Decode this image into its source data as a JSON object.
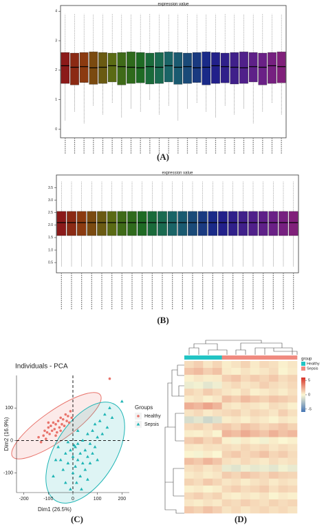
{
  "chart_data": [
    {
      "type": "box",
      "title": "expression value",
      "panel_label": "(A)",
      "categories": [
        null,
        null,
        null,
        null,
        null,
        null,
        null,
        null,
        null,
        null,
        null,
        null,
        null,
        null,
        null,
        null,
        null,
        null,
        null,
        null,
        null,
        null,
        null,
        null
      ],
      "min": [
        0.3,
        0.6,
        0.2,
        0.8,
        0.5,
        0.9,
        0.4,
        0.7,
        0.6,
        1.0,
        0.5,
        0.8,
        0.3,
        0.7,
        0.9,
        0.6,
        0.4,
        0.8,
        0.5,
        0.7,
        0.2,
        0.6,
        0.9,
        0.5
      ],
      "q1": [
        1.55,
        1.5,
        1.58,
        1.52,
        1.55,
        1.6,
        1.5,
        1.55,
        1.57,
        1.53,
        1.55,
        1.6,
        1.52,
        1.55,
        1.58,
        1.5,
        1.55,
        1.57,
        1.53,
        1.55,
        1.6,
        1.5,
        1.55,
        1.57
      ],
      "median": [
        2.15,
        2.1,
        2.12,
        2.08,
        2.1,
        2.15,
        2.12,
        2.1,
        2.08,
        2.12,
        2.1,
        2.15,
        2.1,
        2.12,
        2.08,
        2.1,
        2.15,
        2.12,
        2.1,
        2.08,
        2.12,
        2.1,
        2.15,
        2.12
      ],
      "q3": [
        2.6,
        2.58,
        2.6,
        2.62,
        2.6,
        2.58,
        2.6,
        2.62,
        2.6,
        2.58,
        2.6,
        2.62,
        2.6,
        2.58,
        2.6,
        2.62,
        2.6,
        2.58,
        2.6,
        2.62,
        2.6,
        2.58,
        2.6,
        2.62
      ],
      "max": [
        3.9,
        3.9,
        3.9,
        3.9,
        3.9,
        3.9,
        3.9,
        3.9,
        3.9,
        3.9,
        3.9,
        3.9,
        3.9,
        3.9,
        3.9,
        3.9,
        3.9,
        3.9,
        3.9,
        3.9,
        3.9,
        3.9,
        3.9,
        3.9
      ],
      "colors": [
        "#8b1a1a",
        "#8b2a14",
        "#8b3a10",
        "#7a4a10",
        "#6a5a12",
        "#5a6a14",
        "#3f6a18",
        "#2f6a1c",
        "#1f6a24",
        "#1a6a3a",
        "#1a6a50",
        "#1a6466",
        "#1a5a70",
        "#1a4a78",
        "#1a3a80",
        "#1a2a88",
        "#22208a",
        "#30208a",
        "#40208a",
        "#50208a",
        "#5e2088",
        "#6a2086",
        "#762080",
        "#80207a"
      ],
      "ylim": [
        -0.2,
        4.1
      ],
      "yticks": [
        0,
        1,
        2,
        3,
        4
      ]
    },
    {
      "type": "box",
      "title": "expression value",
      "panel_label": "(B)",
      "categories": [
        null,
        null,
        null,
        null,
        null,
        null,
        null,
        null,
        null,
        null,
        null,
        null,
        null,
        null,
        null,
        null,
        null,
        null,
        null,
        null,
        null,
        null,
        null,
        null
      ],
      "min": [
        0.35,
        0.35,
        0.35,
        0.35,
        0.35,
        0.35,
        0.35,
        0.35,
        0.35,
        0.35,
        0.35,
        0.35,
        0.35,
        0.35,
        0.35,
        0.35,
        0.35,
        0.35,
        0.35,
        0.35,
        0.35,
        0.35,
        0.35,
        0.35
      ],
      "q1": [
        1.58,
        1.58,
        1.58,
        1.58,
        1.58,
        1.58,
        1.58,
        1.58,
        1.58,
        1.58,
        1.58,
        1.58,
        1.58,
        1.58,
        1.58,
        1.58,
        1.58,
        1.58,
        1.58,
        1.58,
        1.58,
        1.58,
        1.58,
        1.58
      ],
      "median": [
        2.1,
        2.1,
        2.1,
        2.1,
        2.1,
        2.1,
        2.1,
        2.1,
        2.1,
        2.1,
        2.1,
        2.1,
        2.1,
        2.1,
        2.1,
        2.1,
        2.1,
        2.1,
        2.1,
        2.1,
        2.1,
        2.1,
        2.1,
        2.1
      ],
      "q3": [
        2.55,
        2.55,
        2.55,
        2.55,
        2.55,
        2.55,
        2.55,
        2.55,
        2.55,
        2.55,
        2.55,
        2.55,
        2.55,
        2.55,
        2.55,
        2.55,
        2.55,
        2.55,
        2.55,
        2.55,
        2.55,
        2.55,
        2.55,
        2.55
      ],
      "max": [
        3.75,
        3.75,
        3.75,
        3.75,
        3.75,
        3.75,
        3.75,
        3.75,
        3.75,
        3.75,
        3.75,
        3.75,
        3.75,
        3.75,
        3.75,
        3.75,
        3.75,
        3.75,
        3.75,
        3.75,
        3.75,
        3.75,
        3.75,
        3.75
      ],
      "colors": [
        "#8b1a1a",
        "#8b2a14",
        "#8b3a10",
        "#7a4a10",
        "#6a5a12",
        "#5a6a14",
        "#3f6a18",
        "#2f6a1c",
        "#1f6a24",
        "#1a6a3a",
        "#1a6a50",
        "#1a6466",
        "#1a5a70",
        "#1a4a78",
        "#1a3a80",
        "#1a2a88",
        "#22208a",
        "#30208a",
        "#40208a",
        "#50208a",
        "#5e2088",
        "#6a2086",
        "#762080",
        "#80207a"
      ],
      "ylim": [
        0.2,
        3.9
      ],
      "yticks": [
        0.5,
        {
          "value": 1,
          "label": "1.0"
        },
        1.5,
        {
          "value": 2,
          "label": "2.0"
        },
        2.5,
        {
          "value": 3,
          "label": "3.0"
        },
        3.5
      ]
    },
    {
      "type": "scatter",
      "title": "Individuals - PCA",
      "panel_label": "(C)",
      "xlabel": "Dim1 (26.5%)",
      "ylabel": "Dim2 (16.9%)",
      "legend_title": "Groups",
      "series": [
        {
          "name": "Healthy",
          "color": "#e8736b",
          "marker": "circle",
          "x": [
            -140,
            -130,
            -120,
            -115,
            -110,
            -105,
            -100,
            -95,
            -90,
            -85,
            -80,
            -75,
            -70,
            -65,
            -60,
            -55,
            -50,
            -45,
            -40,
            -35,
            -30,
            -25,
            -20,
            -15,
            -10,
            -5,
            -100,
            -70,
            -50,
            150
          ],
          "y": [
            10,
            -5,
            15,
            30,
            5,
            25,
            40,
            20,
            45,
            30,
            55,
            35,
            50,
            25,
            60,
            40,
            70,
            50,
            65,
            45,
            80,
            60,
            75,
            55,
            90,
            70,
            55,
            15,
            30,
            190
          ]
        },
        {
          "name": "Sepsis",
          "color": "#1fb5b5",
          "marker": "triangle",
          "x": [
            -60,
            -50,
            -40,
            -30,
            -20,
            -10,
            0,
            0,
            10,
            10,
            20,
            20,
            30,
            30,
            40,
            40,
            50,
            50,
            60,
            60,
            70,
            70,
            80,
            80,
            90,
            90,
            100,
            100,
            110,
            120,
            130,
            140,
            150,
            160,
            -30,
            -10,
            15,
            60,
            -80,
            20,
            -20,
            35,
            200,
            -70,
            5
          ],
          "y": [
            -20,
            -60,
            -90,
            -40,
            -70,
            -30,
            -100,
            -50,
            -20,
            -80,
            -60,
            -10,
            -40,
            -110,
            -70,
            0,
            -30,
            -90,
            -50,
            20,
            -10,
            -70,
            30,
            -40,
            -20,
            50,
            10,
            -60,
            60,
            20,
            80,
            40,
            100,
            70,
            -130,
            -150,
            -130,
            -120,
            -110,
            30,
            -5,
            -150,
            120,
            -60,
            -15
          ]
        }
      ],
      "xlim": [
        -230,
        230
      ],
      "xticks": [
        -200,
        -100,
        0,
        100,
        200
      ],
      "ylim": [
        -160,
        200
      ],
      "yticks": [
        -100,
        0,
        100
      ]
    },
    {
      "type": "heatmap",
      "panel_label": "(D)",
      "legend_title": "group",
      "groups": [
        "Healthy",
        "Sepsis"
      ],
      "group_colors": [
        "#22c4c4",
        "#f08b80"
      ],
      "column_groups": [
        "Healthy",
        "Healthy",
        "Healthy",
        "Healthy",
        "Sepsis",
        "Sepsis",
        "Sepsis",
        "Sepsis",
        "Sepsis",
        "Sepsis",
        "Sepsis",
        "Sepsis"
      ],
      "values": [
        [
          0.8,
          1.2,
          0.5,
          1.0,
          0.3,
          0.6,
          1.1,
          0.4,
          0.9,
          0.7,
          0.2,
          0.5
        ],
        [
          1.5,
          1.8,
          1.2,
          1.6,
          0.4,
          0.2,
          0.6,
          0.3,
          0.5,
          0.8,
          0.1,
          0.4
        ],
        [
          0.2,
          0.5,
          0.3,
          0.4,
          1.2,
          1.5,
          0.9,
          1.3,
          1.0,
          1.4,
          0.8,
          1.1
        ],
        [
          -0.5,
          -0.3,
          -0.8,
          -0.4,
          0.6,
          0.9,
          0.5,
          0.7,
          1.2,
          0.8,
          0.6,
          0.9
        ],
        [
          1.0,
          0.7,
          1.3,
          0.9,
          0.5,
          0.3,
          0.8,
          0.2,
          0.4,
          0.6,
          0.3,
          0.7
        ],
        [
          0.4,
          0.6,
          0.2,
          0.5,
          1.6,
          1.2,
          1.8,
          1.4,
          1.1,
          1.5,
          1.3,
          1.0
        ],
        [
          2.2,
          1.9,
          2.5,
          2.0,
          0.6,
          0.4,
          0.7,
          0.5,
          0.3,
          0.8,
          0.6,
          0.2
        ],
        [
          0.6,
          0.9,
          0.4,
          0.7,
          0.9,
          1.1,
          0.6,
          1.0,
          0.8,
          0.5,
          1.2,
          0.7
        ],
        [
          -1.2,
          -0.8,
          -1.5,
          -1.0,
          0.3,
          0.5,
          0.2,
          0.6,
          0.4,
          0.1,
          0.5,
          0.3
        ],
        [
          0.9,
          1.1,
          0.7,
          1.2,
          1.4,
          1.0,
          1.6,
          1.3,
          0.9,
          1.2,
          1.5,
          1.1
        ],
        [
          0.3,
          0.2,
          0.5,
          0.1,
          2.0,
          1.7,
          2.3,
          1.8,
          1.5,
          2.1,
          1.6,
          1.9
        ],
        [
          1.3,
          1.6,
          1.0,
          1.4,
          0.2,
          -0.2,
          0.4,
          0.1,
          -0.3,
          0.3,
          0.0,
          0.2
        ],
        [
          0.5,
          0.4,
          0.7,
          0.6,
          0.8,
          0.6,
          1.0,
          0.7,
          0.9,
          0.5,
          0.8,
          0.6
        ],
        [
          0.1,
          -0.2,
          0.3,
          0.0,
          1.1,
          1.4,
          0.9,
          1.2,
          1.6,
          1.0,
          1.3,
          0.8
        ],
        [
          1.7,
          1.4,
          2.0,
          1.5,
          0.7,
          0.5,
          0.9,
          0.6,
          0.4,
          0.8,
          0.5,
          0.7
        ],
        [
          0.7,
          0.9,
          0.5,
          0.8,
          -0.6,
          -0.9,
          -0.4,
          -0.7,
          -0.5,
          -0.8,
          -0.3,
          -0.6
        ],
        [
          0.4,
          0.6,
          0.3,
          0.5,
          1.3,
          1.0,
          1.5,
          1.2,
          0.9,
          1.4,
          1.1,
          1.0
        ],
        [
          1.1,
          0.8,
          1.4,
          1.0,
          0.5,
          0.7,
          0.3,
          0.6,
          0.8,
          0.4,
          0.7,
          0.5
        ],
        [
          0.2,
          0.4,
          0.1,
          0.3,
          0.9,
          1.2,
          0.8,
          1.0,
          1.3,
          0.7,
          1.1,
          0.9
        ],
        [
          0.9,
          1.2,
          0.8,
          1.1,
          0.4,
          0.2,
          0.5,
          0.3,
          0.6,
          0.1,
          0.4,
          0.2
        ],
        [
          0.5,
          0.3,
          0.6,
          0.4,
          1.0,
          0.8,
          1.2,
          0.9,
          0.7,
          1.1,
          0.8,
          1.0
        ],
        [
          1.4,
          1.1,
          1.6,
          1.2,
          0.6,
          0.9,
          0.5,
          0.8,
          1.0,
          0.7,
          0.9,
          0.6
        ]
      ],
      "zlim": [
        -6,
        6
      ],
      "colorbar_ticks": [
        5,
        0,
        -5
      ],
      "colors": [
        "#4575b4",
        "#fbf7d3",
        "#d73027"
      ]
    }
  ]
}
